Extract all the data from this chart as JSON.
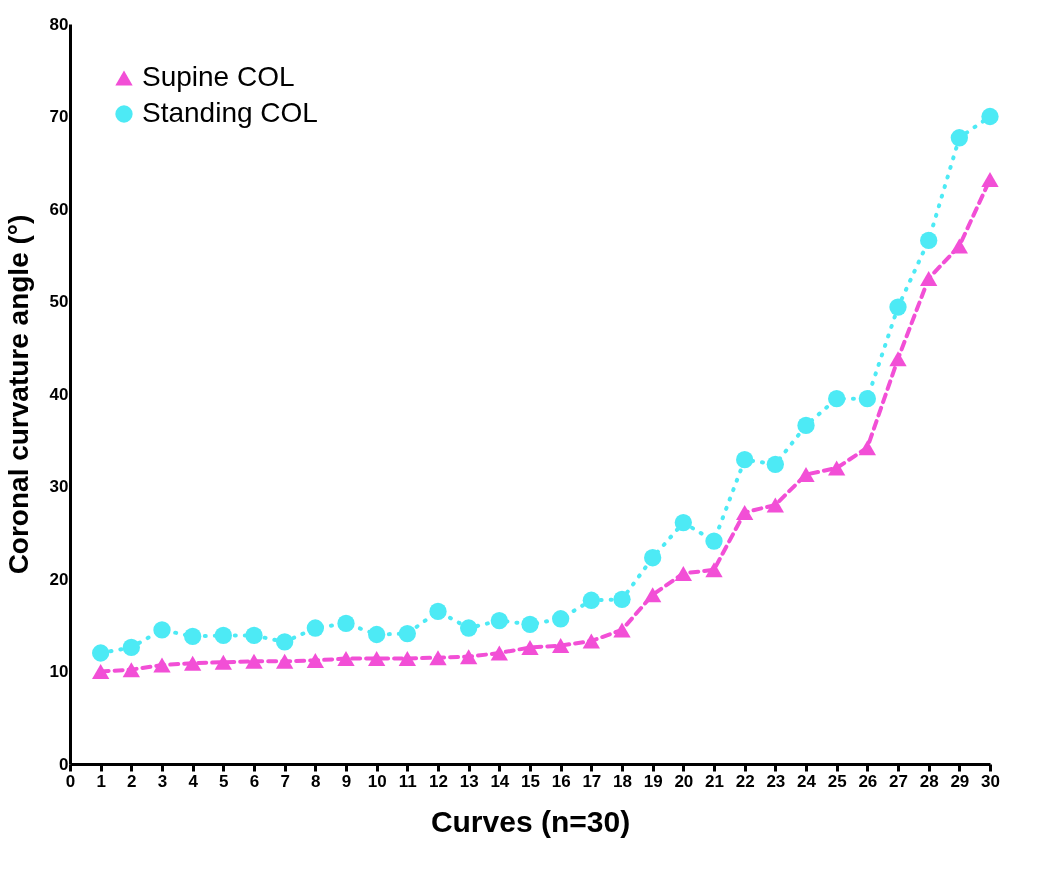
{
  "chart_data": {
    "type": "line",
    "xlabel": "Curves (n=30)",
    "ylabel": "Coronal curvature angle (°)",
    "x": [
      1,
      2,
      3,
      4,
      5,
      6,
      7,
      8,
      9,
      10,
      11,
      12,
      13,
      14,
      15,
      16,
      17,
      18,
      19,
      20,
      21,
      22,
      23,
      24,
      25,
      26,
      27,
      28,
      29,
      30
    ],
    "series": [
      {
        "name": "Supine COL",
        "color": "#f24fd6",
        "marker": "triangle",
        "line_style": "dashed",
        "values": [
          10.0,
          10.2,
          10.7,
          10.9,
          11.0,
          11.1,
          11.1,
          11.2,
          11.4,
          11.4,
          11.4,
          11.5,
          11.6,
          12.0,
          12.6,
          12.8,
          13.3,
          14.5,
          18.3,
          20.6,
          21.0,
          27.2,
          28.0,
          31.3,
          32.0,
          34.2,
          43.8,
          52.5,
          56.0,
          63.2
        ]
      },
      {
        "name": "Standing COL",
        "color": "#4deaf5",
        "marker": "circle",
        "line_style": "dotted",
        "values": [
          12.0,
          12.6,
          14.5,
          13.8,
          13.9,
          13.9,
          13.2,
          14.7,
          15.2,
          14.0,
          14.1,
          16.5,
          14.7,
          15.5,
          15.1,
          15.7,
          17.7,
          17.8,
          22.3,
          26.1,
          24.1,
          32.9,
          32.4,
          36.6,
          39.5,
          39.5,
          49.4,
          56.6,
          67.7,
          70.0
        ]
      }
    ],
    "xlim": [
      0,
      30
    ],
    "xticks": [
      0,
      1,
      2,
      3,
      4,
      5,
      6,
      7,
      8,
      9,
      10,
      11,
      12,
      13,
      14,
      15,
      16,
      17,
      18,
      19,
      20,
      21,
      22,
      23,
      24,
      25,
      26,
      27,
      28,
      29,
      30
    ],
    "ylim": [
      0,
      80
    ],
    "yticks": [
      0,
      10,
      20,
      30,
      40,
      50,
      60,
      70,
      80
    ],
    "grid": false,
    "legend": "top left"
  }
}
